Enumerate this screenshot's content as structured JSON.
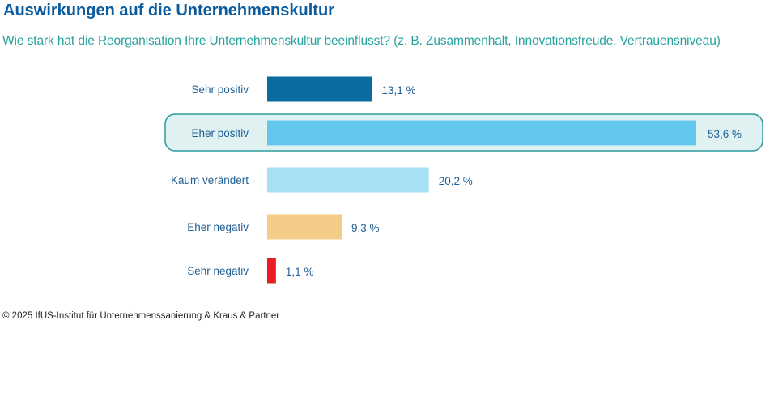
{
  "title": "Auswirkungen auf die Unternehmenskultur",
  "subtitle": "Wie stark hat die Reorganisation Ihre Unternehmenskultur beeinflusst? (z. B. Zusammenhalt, Innovationsfreude, Vertrauensniveau)",
  "copyright": "© 2025 IfUS-Institut für Unternehmenssanierung & Kraus & Partner",
  "chart_data": {
    "type": "bar",
    "orientation": "horizontal",
    "title": "Auswirkungen auf die Unternehmenskultur",
    "xlabel": "",
    "ylabel": "",
    "categories": [
      "Sehr positiv",
      "Eher positiv",
      "Kaum verändert",
      "Eher negativ",
      "Sehr negativ"
    ],
    "values": [
      13.1,
      53.6,
      20.2,
      9.3,
      1.1
    ],
    "value_labels": [
      "13,1 %",
      "53,6 %",
      "20,2 %",
      "9,3 %",
      "1,1 %"
    ],
    "colors": [
      "#0b6c9f",
      "#63c6ec",
      "#a8e1f4",
      "#f3cc87",
      "#ec1c24"
    ],
    "highlighted": "Eher positiv",
    "highlight_color": "#2a9a9a",
    "unit": "%"
  }
}
